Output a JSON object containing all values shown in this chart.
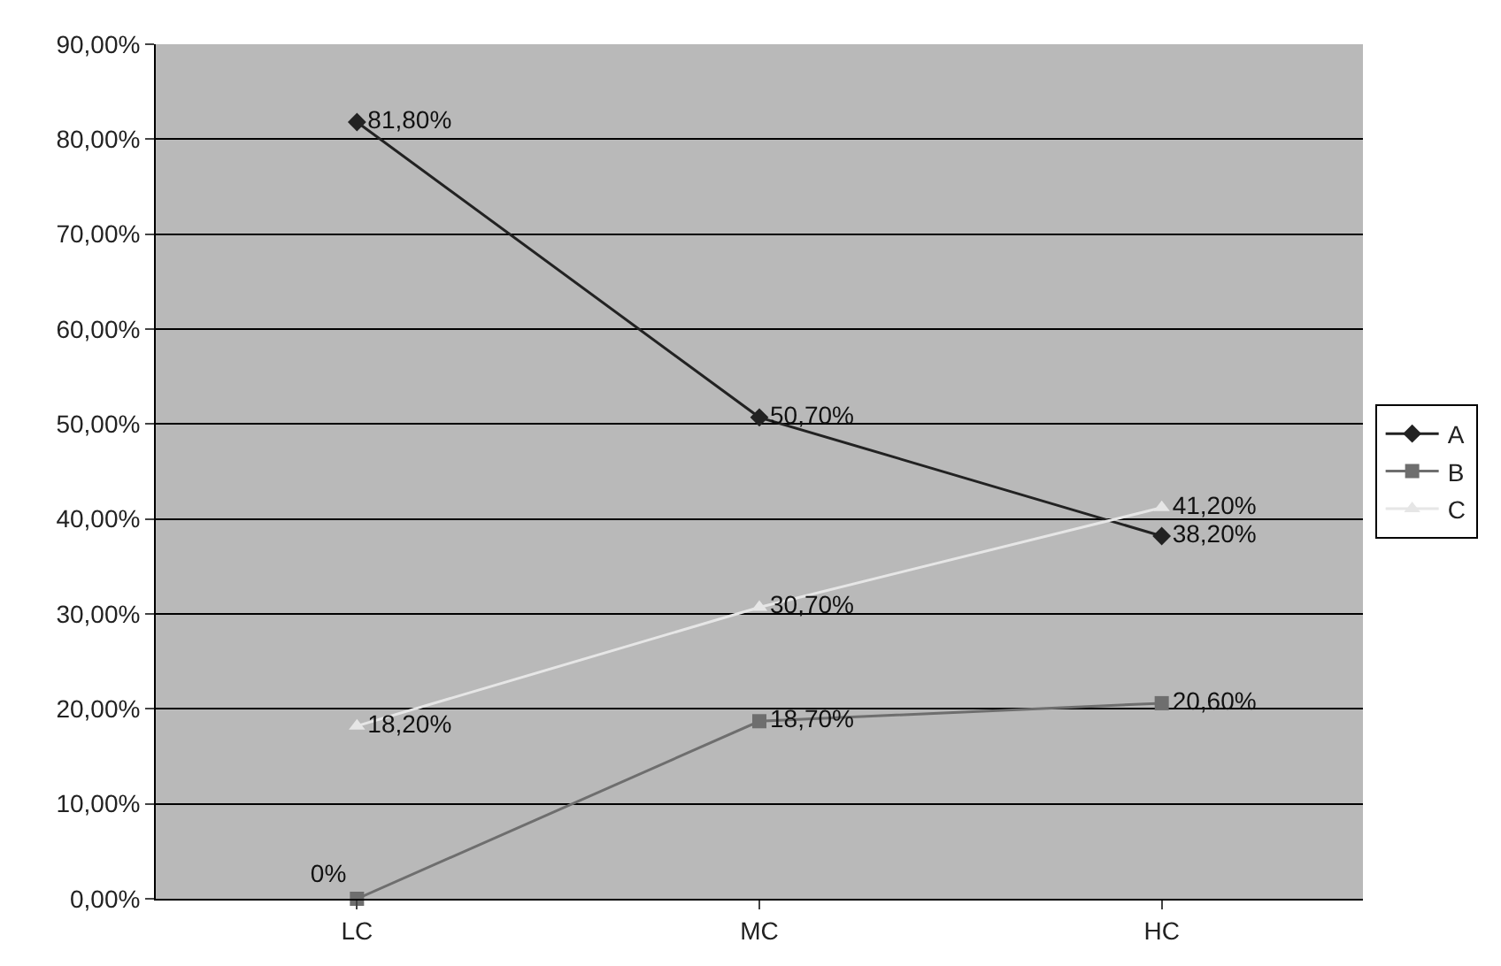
{
  "chart_data": {
    "type": "line",
    "categories": [
      "LC",
      "MC",
      "HC"
    ],
    "series": [
      {
        "name": "A",
        "color": "#222222",
        "marker": "diamond",
        "values": [
          81.8,
          50.7,
          38.2
        ],
        "value_labels": [
          "81,80%",
          "50,70%",
          "38,20%"
        ]
      },
      {
        "name": "B",
        "color": "#6e6e6e",
        "marker": "square",
        "values": [
          0,
          18.7,
          20.6
        ],
        "value_labels": [
          "0%",
          "18,70%",
          "20,60%"
        ]
      },
      {
        "name": "C",
        "color": "#e6e6e6",
        "marker": "triangle",
        "values": [
          18.2,
          30.7,
          41.2
        ],
        "value_labels": [
          "18,20%",
          "30,70%",
          "41,20%"
        ]
      }
    ],
    "ylim": [
      0,
      90
    ],
    "yticks": [
      {
        "value": 0,
        "label": "0,00%"
      },
      {
        "value": 10,
        "label": "10,00%"
      },
      {
        "value": 20,
        "label": "20,00%"
      },
      {
        "value": 30,
        "label": "30,00%"
      },
      {
        "value": 40,
        "label": "40,00%"
      },
      {
        "value": 50,
        "label": "50,00%"
      },
      {
        "value": 60,
        "label": "60,00%"
      },
      {
        "value": 70,
        "label": "70,00%"
      },
      {
        "value": 80,
        "label": "80,00%"
      },
      {
        "value": 90,
        "label": "90,00%"
      }
    ],
    "grid": "y",
    "legend": "right",
    "line_style": "solid"
  }
}
